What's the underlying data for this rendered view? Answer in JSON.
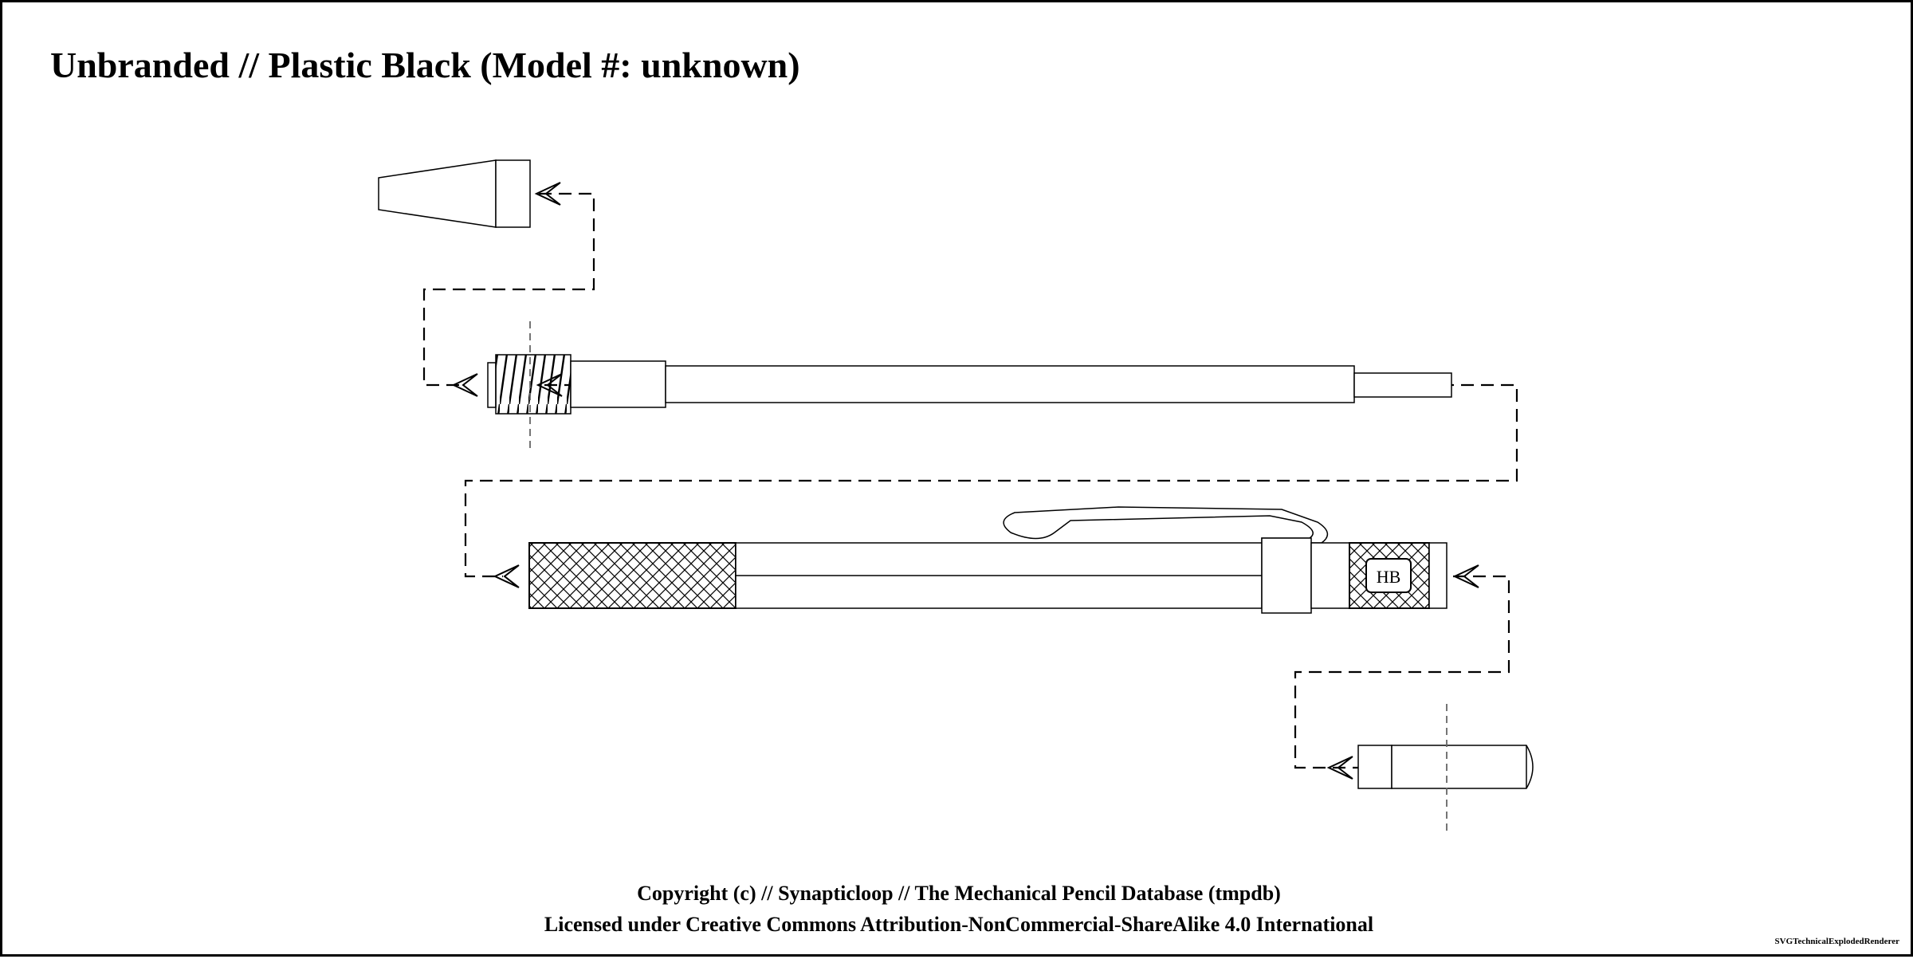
{
  "title": "Unbranded // Plastic Black (Model #: unknown)",
  "footer": {
    "copyright": "Copyright (c) // Synapticloop // The Mechanical Pencil Database (tmpdb)",
    "license": "Licensed under Creative Commons Attribution-NonCommercial-ShareAlike 4.0 International"
  },
  "renderer": "SVGTechnicalExplodedRenderer",
  "grade_label": "HB",
  "colors": {
    "border": "#000000",
    "background": "#ffffff",
    "line": "#000000",
    "center_axis": "#666666",
    "grip_hatch": "#000000"
  },
  "components": [
    "tip-cone",
    "lead-tube-assembly",
    "pencil-body",
    "end-cap"
  ]
}
